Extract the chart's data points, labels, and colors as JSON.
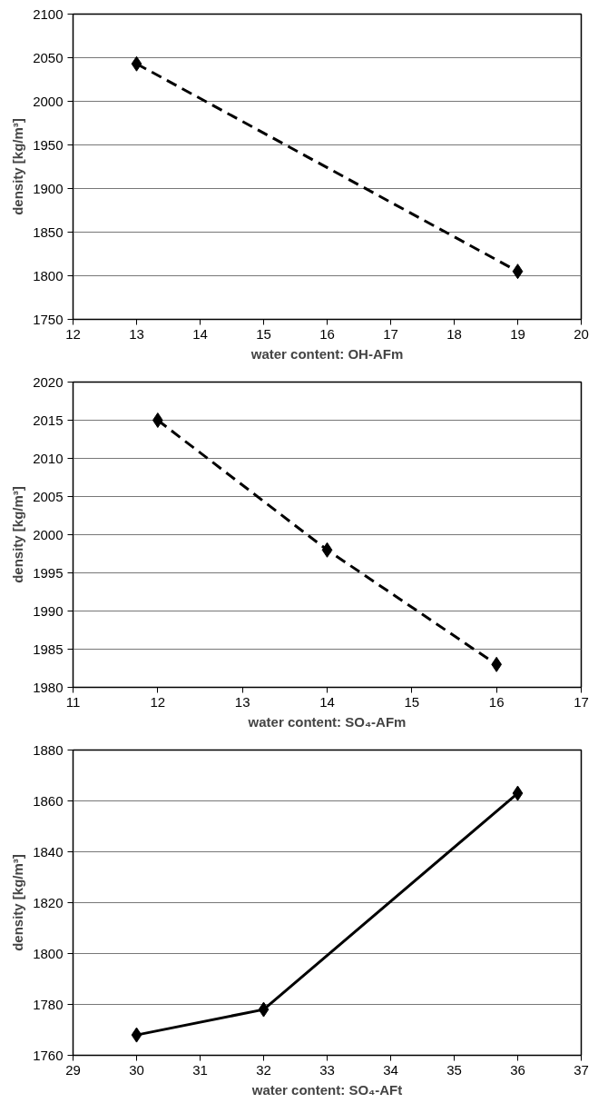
{
  "chart_data": [
    {
      "type": "line",
      "xlabel": "water content: OH-AFm",
      "ylabel": "density [kg/m³]",
      "x": [
        13,
        19
      ],
      "series": [
        {
          "color": "#000000",
          "values": [
            2043,
            1805
          ]
        }
      ],
      "xlim": [
        12,
        20
      ],
      "xticks": [
        12,
        13,
        14,
        15,
        16,
        17,
        18,
        19,
        20
      ],
      "ylim": [
        1750,
        2100
      ],
      "yticks": [
        1750,
        1800,
        1850,
        1900,
        1950,
        2000,
        2050,
        2100
      ],
      "grid": "y",
      "marker": "diamond",
      "line_style": "dashed"
    },
    {
      "type": "line",
      "xlabel": "water content: SO₄-AFm",
      "ylabel": "density [kg/m³]",
      "x": [
        12,
        14,
        16
      ],
      "series": [
        {
          "color": "#000000",
          "values": [
            2015,
            1998,
            1983
          ]
        }
      ],
      "xlim": [
        11,
        17
      ],
      "xticks": [
        11,
        12,
        13,
        14,
        15,
        16,
        17
      ],
      "ylim": [
        1980,
        2020
      ],
      "yticks": [
        1980,
        1985,
        1990,
        1995,
        2000,
        2005,
        2010,
        2015,
        2020
      ],
      "grid": "y",
      "marker": "diamond",
      "line_style": "dashed"
    },
    {
      "type": "line",
      "xlabel": "water content: SO₄-AFt",
      "ylabel": "density [kg/m³]",
      "x": [
        30,
        32,
        36
      ],
      "series": [
        {
          "color": "#000000",
          "values": [
            1768,
            1778,
            1863
          ]
        }
      ],
      "xlim": [
        29,
        37
      ],
      "xticks": [
        29,
        30,
        31,
        32,
        33,
        34,
        35,
        36,
        37
      ],
      "ylim": [
        1760,
        1880
      ],
      "yticks": [
        1760,
        1780,
        1800,
        1820,
        1840,
        1860,
        1880
      ],
      "grid": "y",
      "marker": "diamond",
      "line_style": "solid"
    }
  ]
}
